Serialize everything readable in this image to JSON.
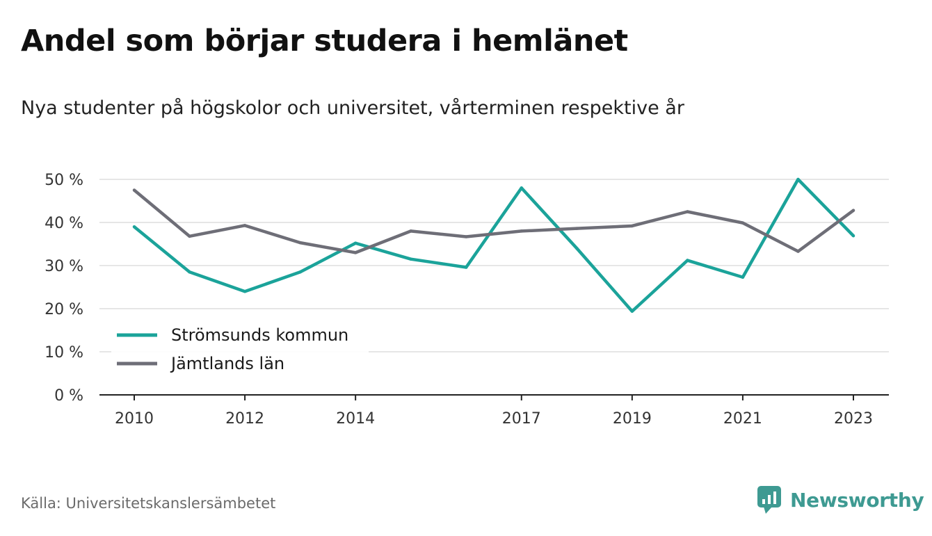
{
  "title": "Andel som börjar studera i hemlänet",
  "subtitle": "Nya studenter på högskolor och universitet, vårterminen respektive år",
  "source": "Källa: Universitetskanslersämbetet",
  "brand": {
    "name": "Newsworthy",
    "icon": "newsworthy-logo-icon",
    "color": "#3e9a92"
  },
  "chart_data": {
    "type": "line",
    "x": [
      2010,
      2011,
      2012,
      2013,
      2014,
      2015,
      2016,
      2017,
      2018,
      2019,
      2020,
      2021,
      2022,
      2023
    ],
    "x_tick_labels": [
      "2010",
      "2012",
      "2014",
      "2017",
      "2019",
      "2021",
      "2023"
    ],
    "y_tick_labels": [
      "0 %",
      "10 %",
      "20 %",
      "30 %",
      "40 %",
      "50 %"
    ],
    "ylim": [
      0,
      50
    ],
    "grid": true,
    "legend_position": "bottom-left",
    "series": [
      {
        "name": "Strömsunds kommun",
        "color": "#1ba39a",
        "values": [
          39.0,
          28.5,
          24.0,
          28.5,
          35.2,
          31.5,
          29.6,
          48.0,
          34.0,
          19.4,
          31.2,
          27.3,
          50.0,
          36.9
        ]
      },
      {
        "name": "Jämtlands län",
        "color": "#6e6e77",
        "values": [
          47.5,
          36.8,
          39.3,
          35.3,
          33.0,
          38.0,
          36.7,
          38.0,
          38.6,
          39.2,
          42.5,
          39.9,
          33.3,
          42.8
        ]
      }
    ]
  }
}
